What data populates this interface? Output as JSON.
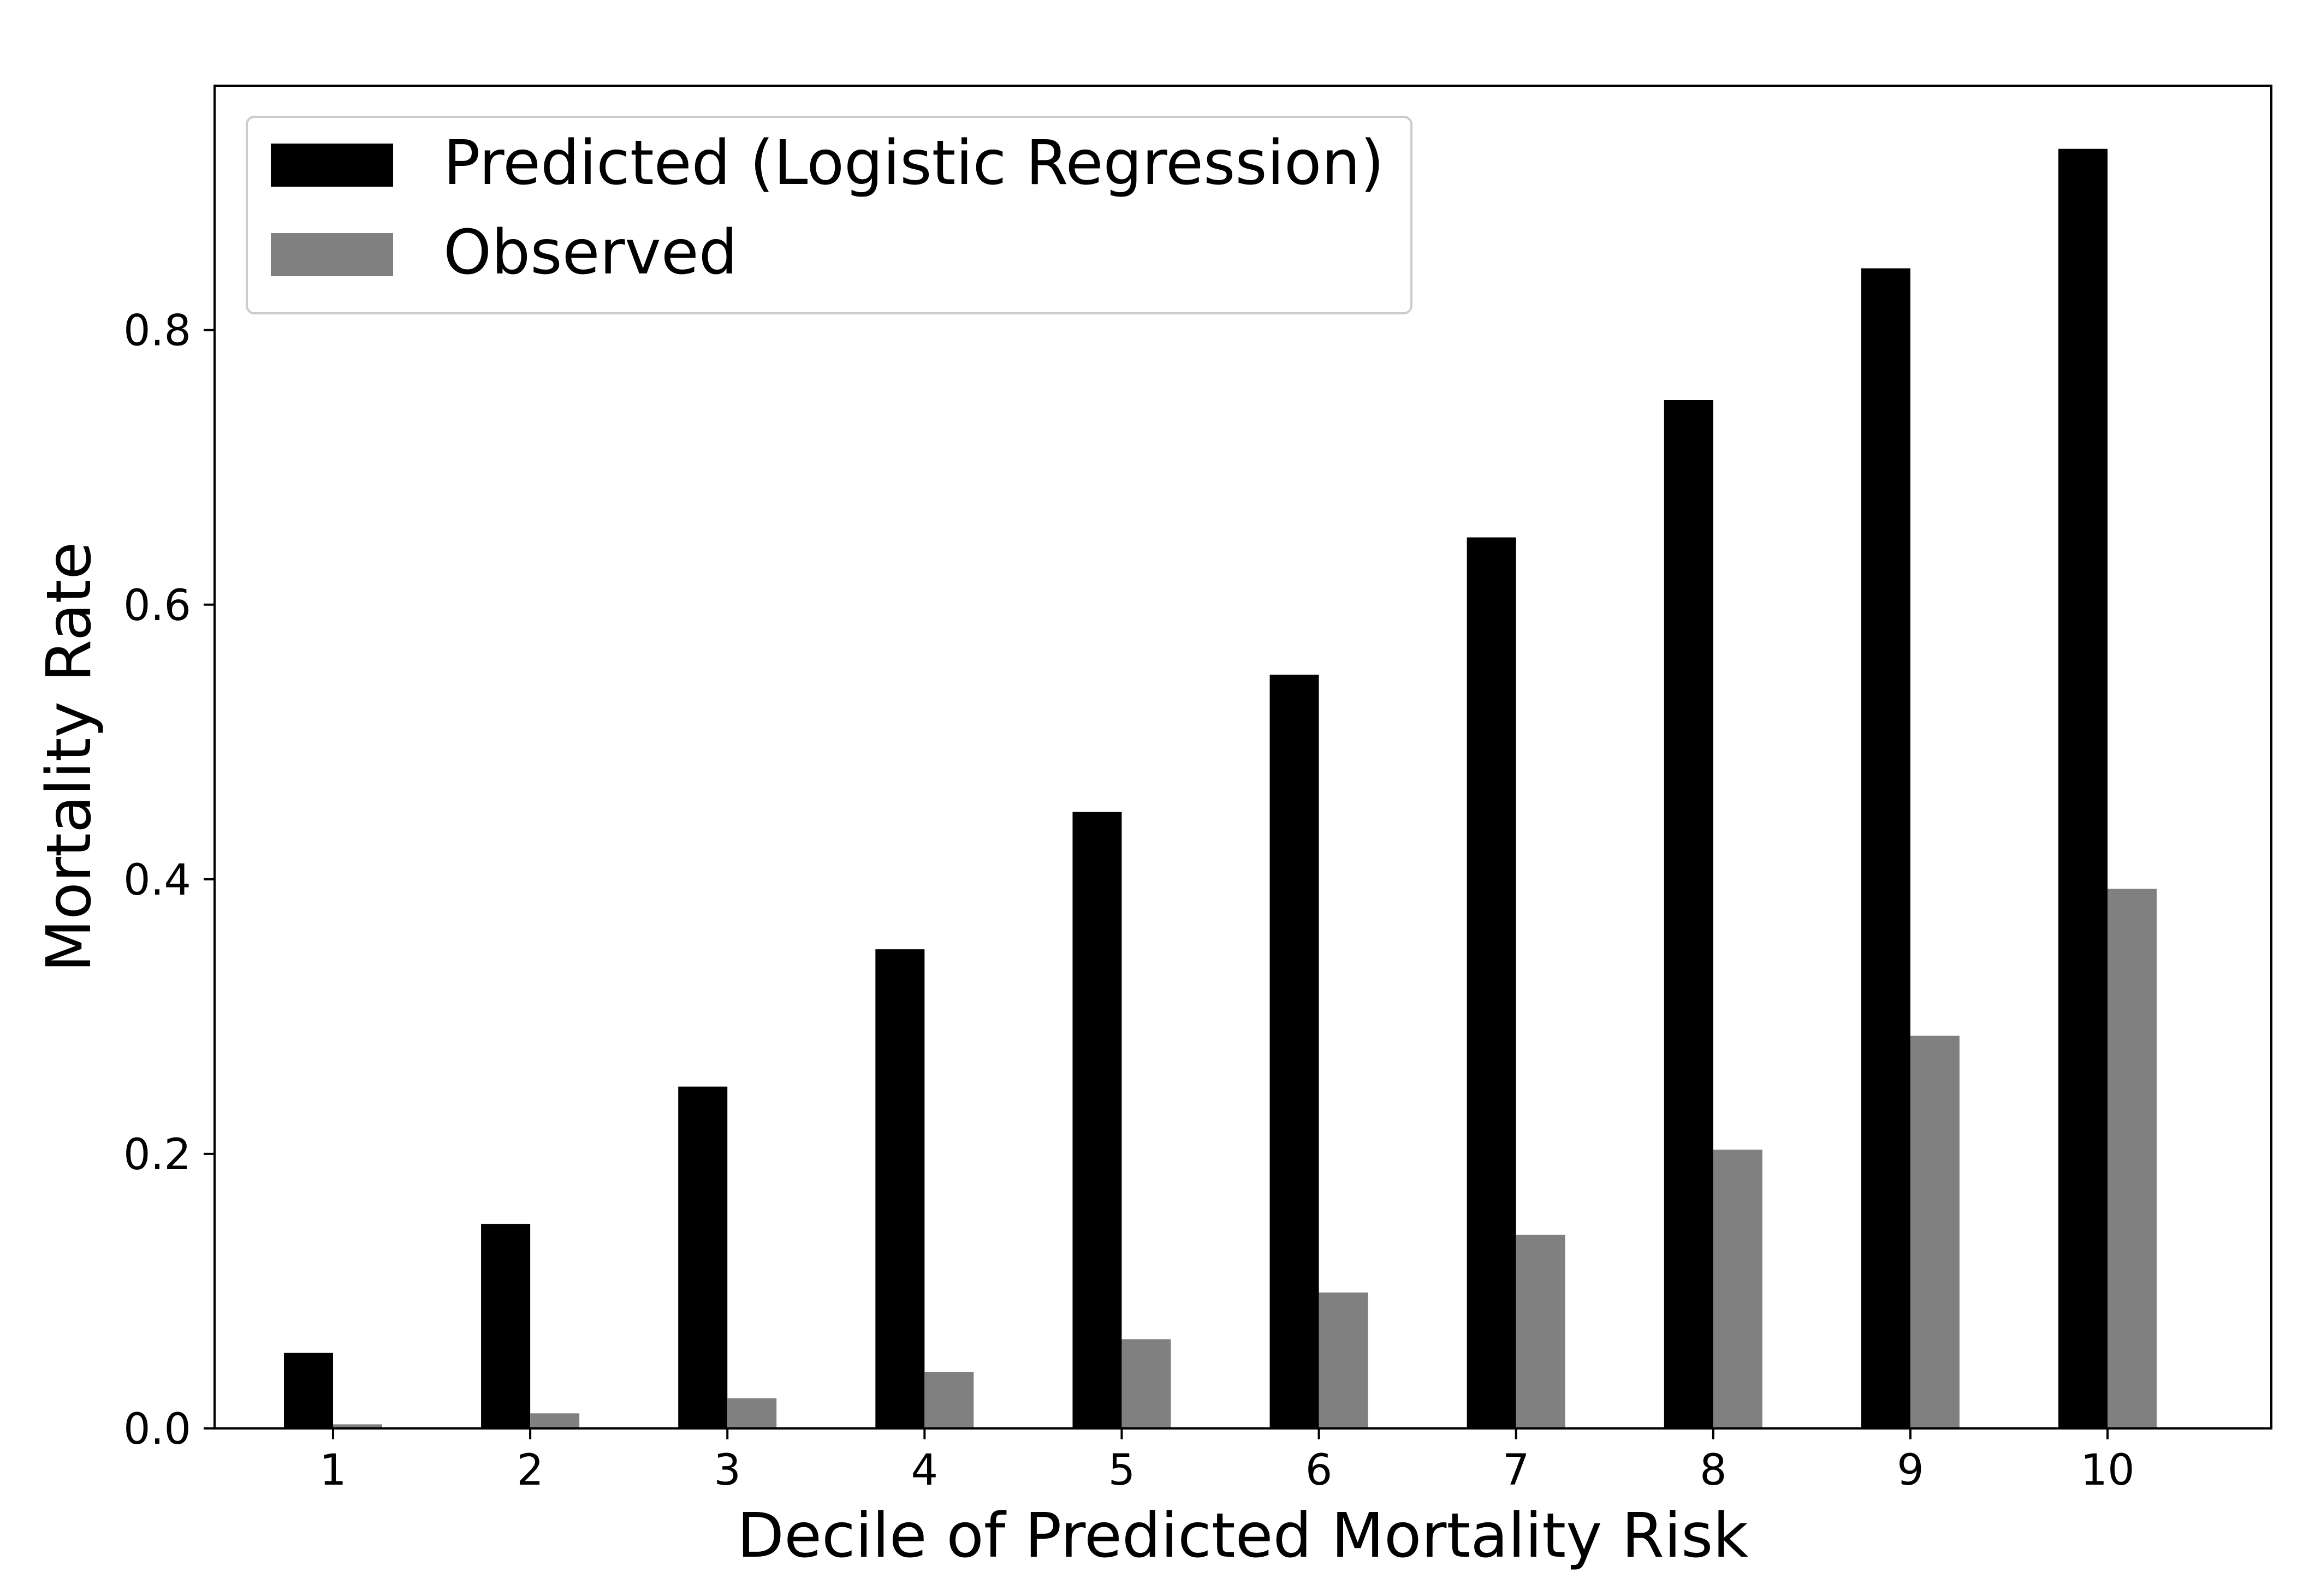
{
  "chart_data": {
    "type": "bar",
    "title": "",
    "xlabel": "Decile of Predicted Mortality Risk",
    "ylabel": "Mortality Rate",
    "categories": [
      "1",
      "2",
      "3",
      "4",
      "5",
      "6",
      "7",
      "8",
      "9",
      "10"
    ],
    "series": [
      {
        "name": "Predicted (Logistic Regression)",
        "color": "#000000",
        "values": [
          0.055,
          0.149,
          0.249,
          0.349,
          0.449,
          0.549,
          0.649,
          0.749,
          0.845,
          0.932
        ]
      },
      {
        "name": "Observed",
        "color": "#808080",
        "values": [
          0.003,
          0.011,
          0.022,
          0.041,
          0.065,
          0.099,
          0.141,
          0.203,
          0.286,
          0.393
        ]
      }
    ],
    "ylim": [
      0,
      0.978
    ],
    "yticks": [
      0.0,
      0.2,
      0.4,
      0.6,
      0.8
    ],
    "ytick_labels": [
      "0.0",
      "0.2",
      "0.4",
      "0.6",
      "0.8"
    ],
    "grid": false,
    "legend_position": "top-left"
  }
}
